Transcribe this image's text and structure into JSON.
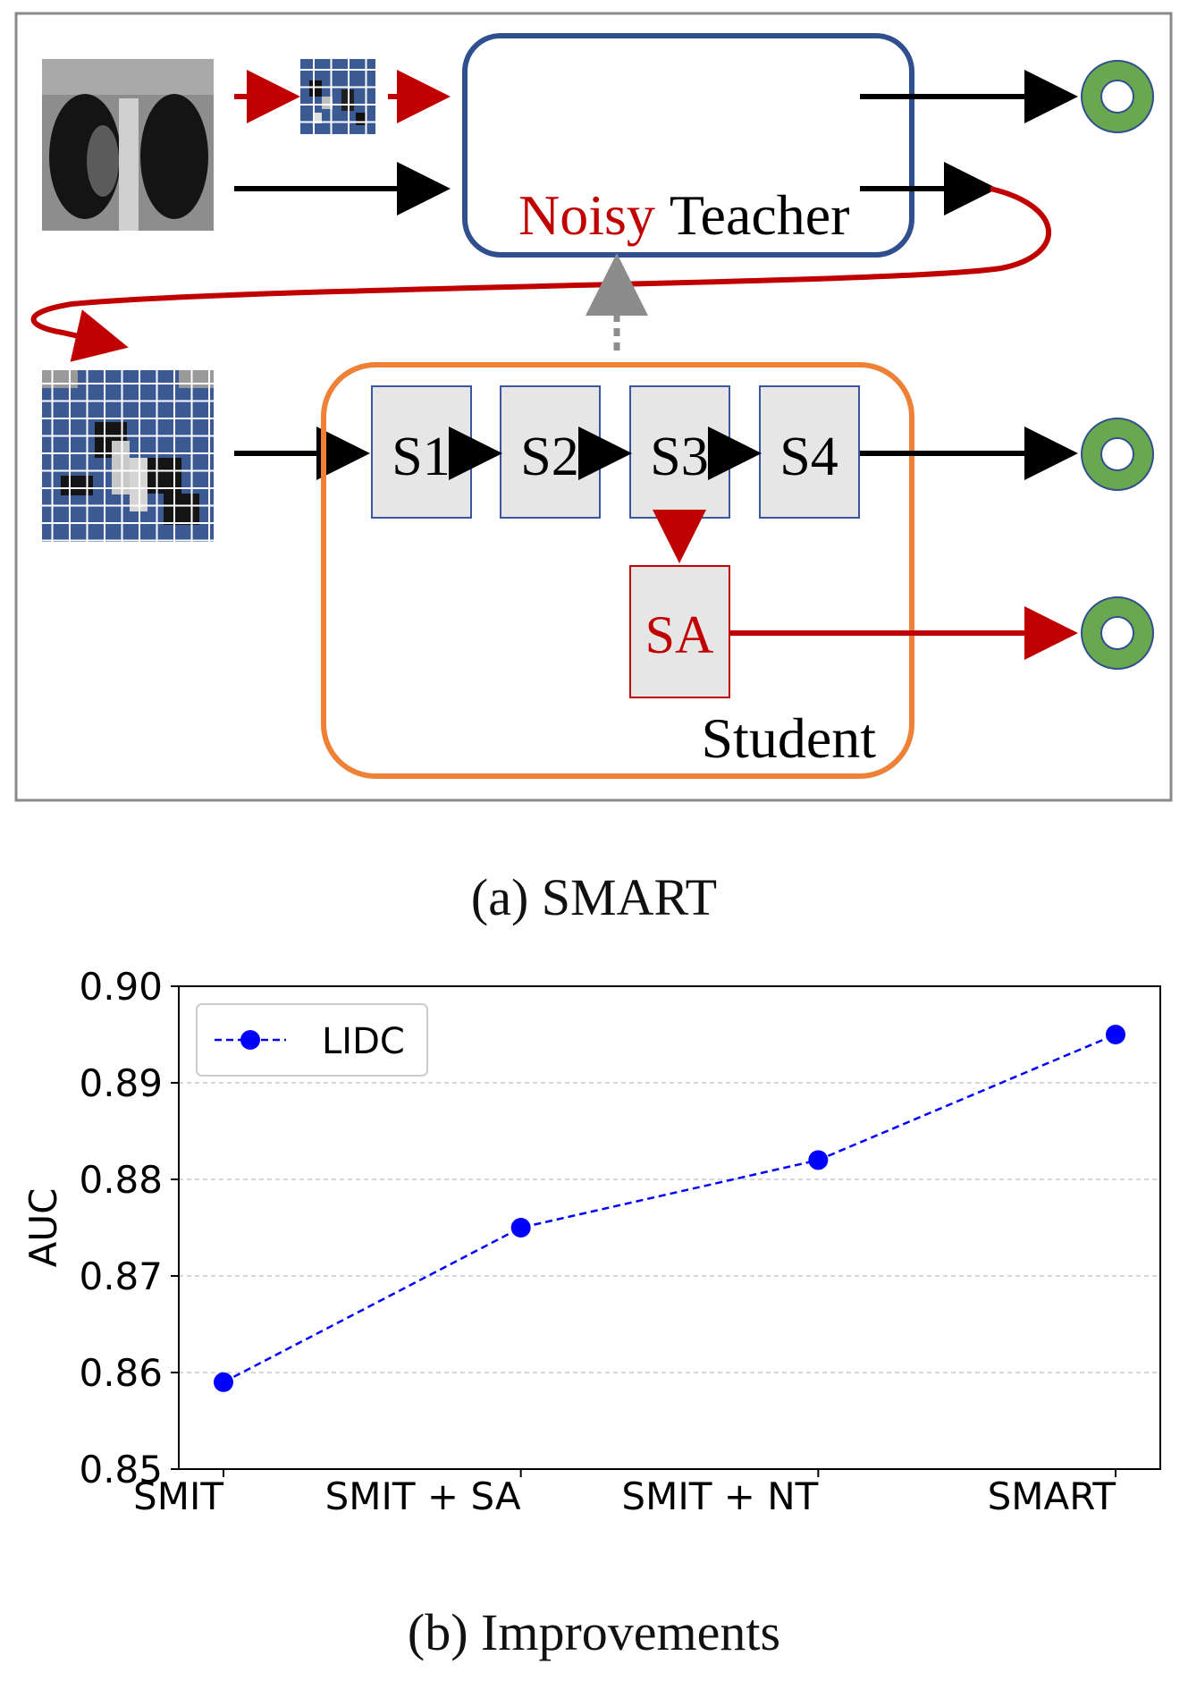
{
  "diagram": {
    "teacher_label_noisy": "Noisy",
    "teacher_label_teacher": "Teacher",
    "student_label": "Student",
    "stages": [
      "S1",
      "S2",
      "S3",
      "S4"
    ],
    "sa_label": "SA",
    "colors": {
      "teacher_border": "#2f4f8f",
      "student_border": "#ee8136",
      "red": "#c00000",
      "black": "#000000",
      "output_ring": "#6aa84f",
      "patch_blue": "#3b5a94",
      "stage_fill": "#e6e6e6",
      "stage_border": "#3a56a0",
      "dotted_arrow": "#8c8c8c"
    },
    "icons": [
      "ct-scan-image",
      "masked-ct-image",
      "output-ring-icon"
    ]
  },
  "caption_a": "(a) SMART",
  "caption_b": "(b) Improvements",
  "chart_data": {
    "type": "line",
    "categories": [
      "SMIT",
      "SMIT + SA",
      "SMIT + NT",
      "SMART"
    ],
    "series": [
      {
        "name": "LIDC",
        "values": [
          0.859,
          0.875,
          0.882,
          0.895
        ],
        "color": "#0000ff",
        "style": "dashed",
        "marker": "circle"
      }
    ],
    "xlabel": "",
    "ylabel": "AUC",
    "ylim": [
      0.85,
      0.9
    ],
    "yticks": [
      "0.85",
      "0.86",
      "0.87",
      "0.88",
      "0.89",
      "0.90"
    ],
    "grid": "horizontal dashed",
    "legend": "top-left"
  }
}
